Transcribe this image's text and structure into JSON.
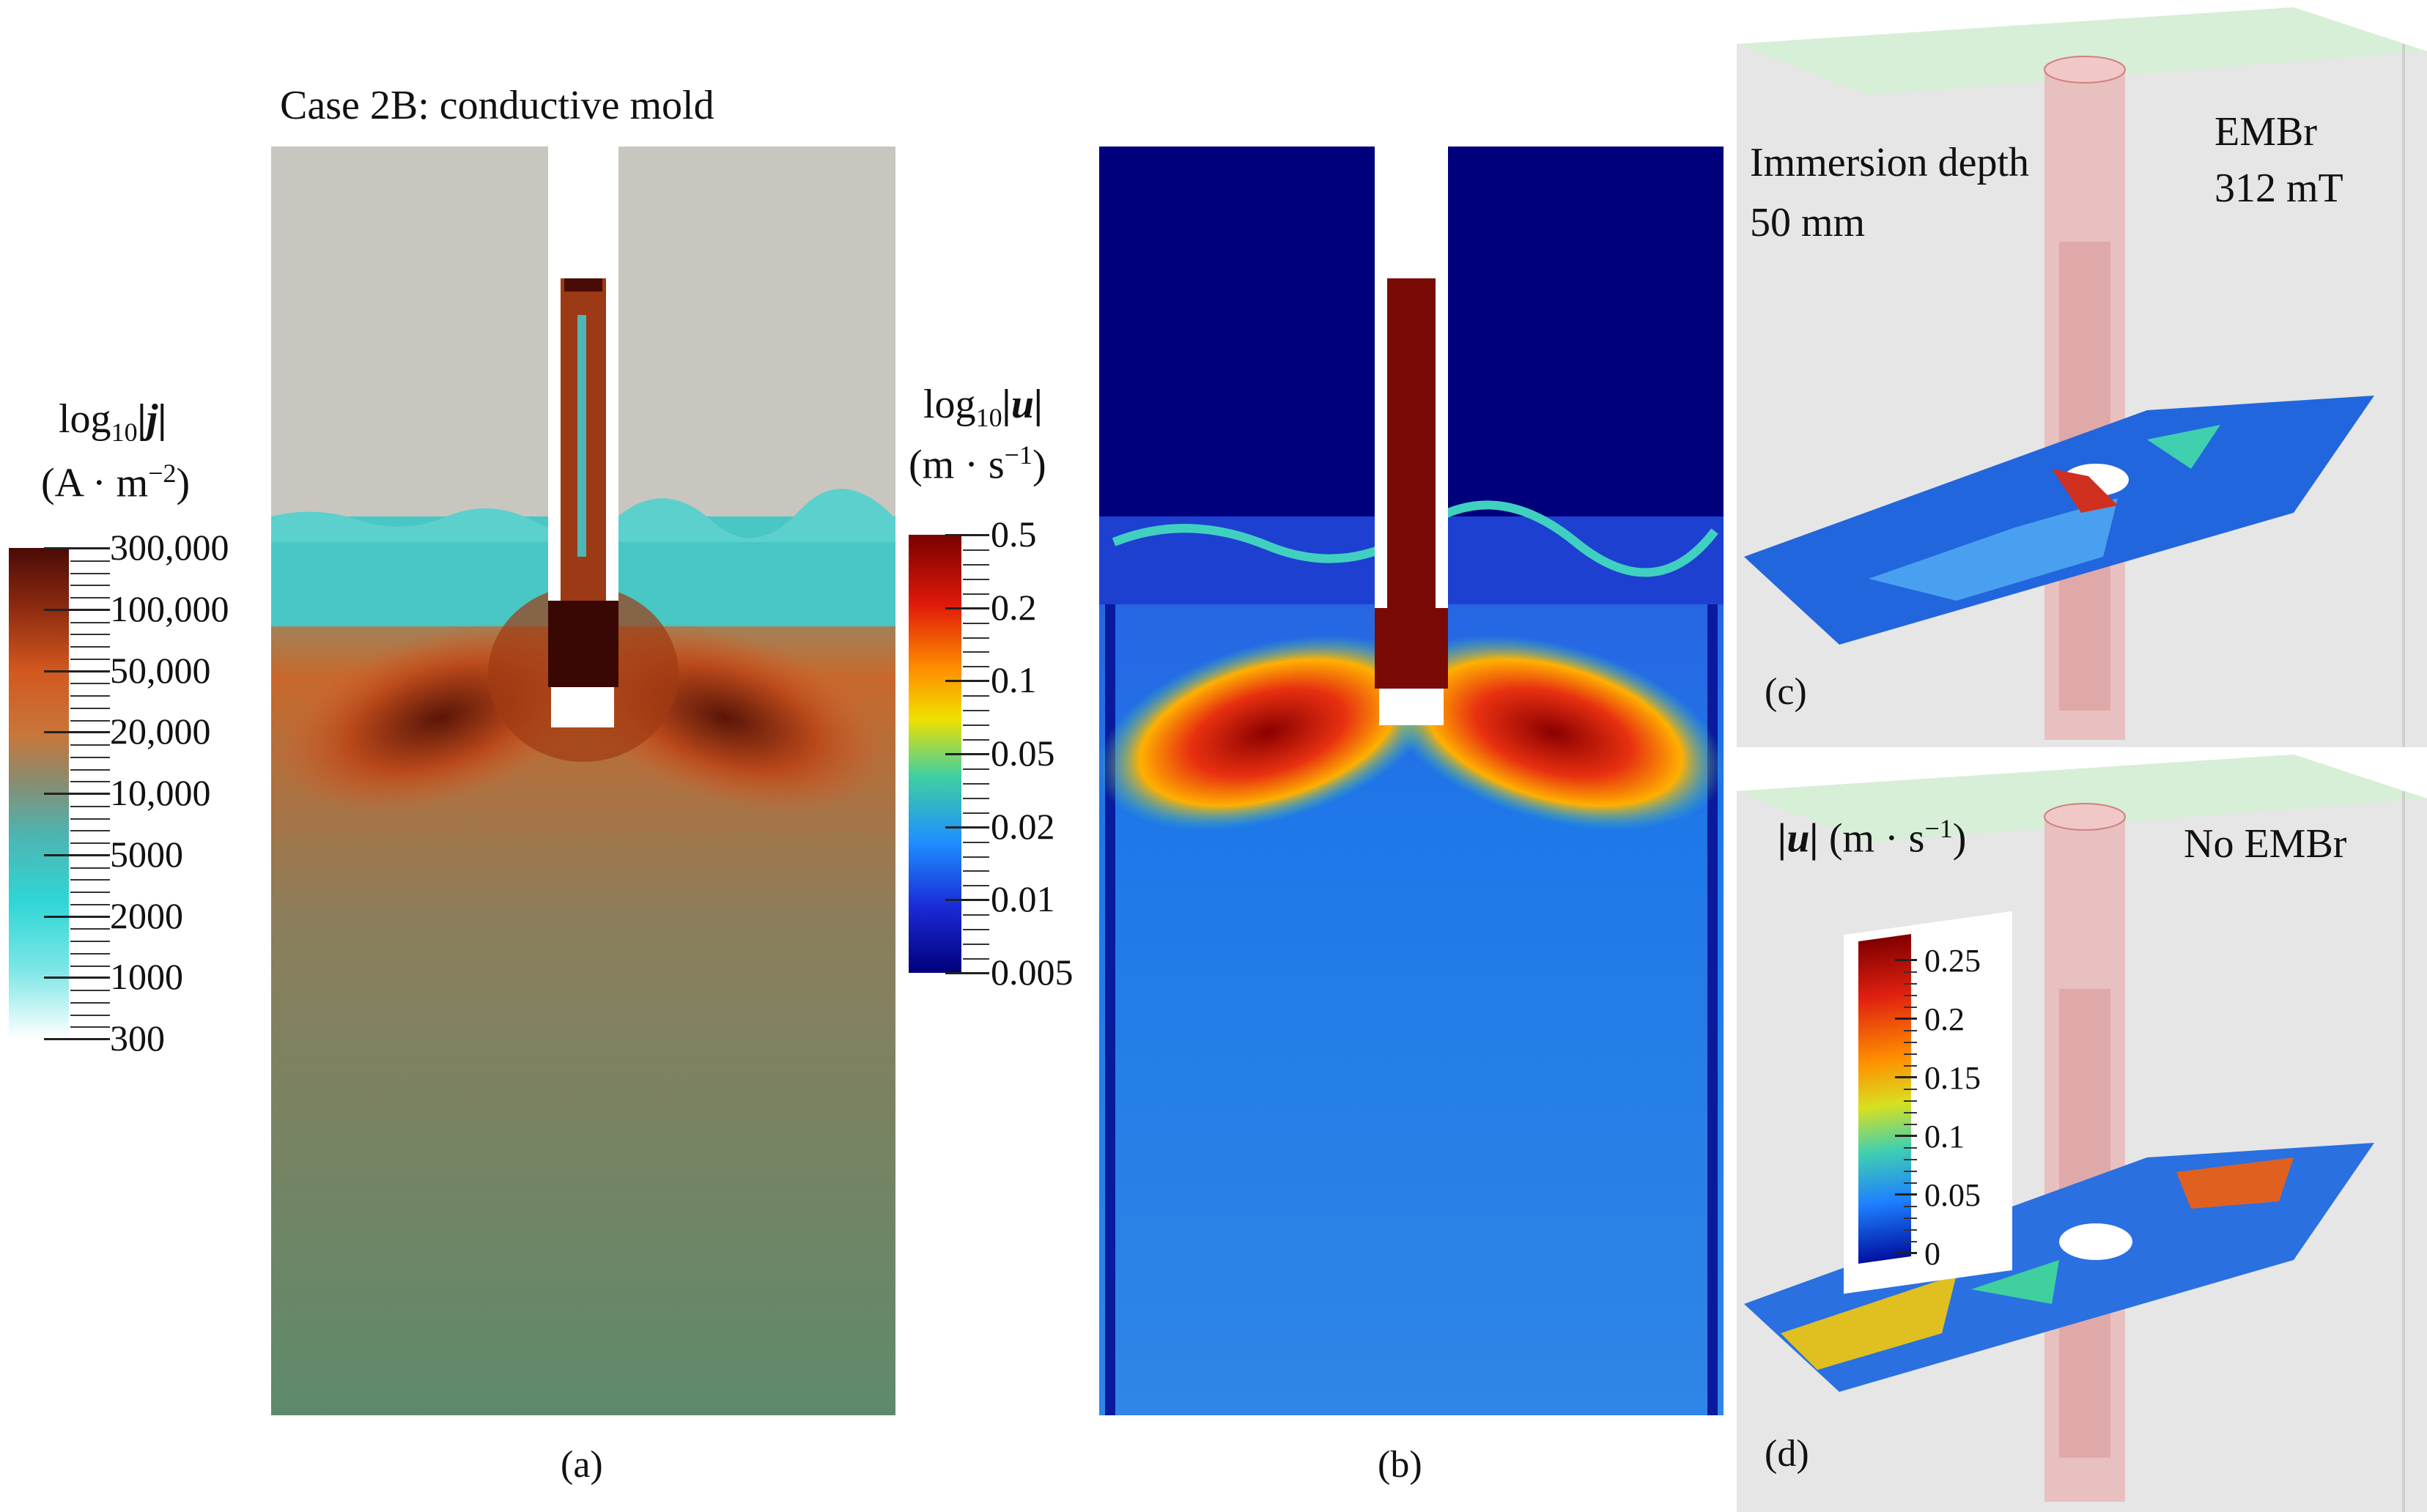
{
  "panel_a": {
    "title": "Case 2B: conductive mold",
    "label": "(a)",
    "colorbar": {
      "title_line1": "log",
      "title_sub": "10",
      "title_var": "|j|",
      "unit": "(A · m",
      "unit_exp": "−2",
      "unit_close": ")",
      "ticks": [
        "300,000",
        "100,000",
        "50,000",
        "20,000",
        "10,000",
        "5000",
        "2000",
        "1000",
        "300"
      ],
      "colors": [
        "#4a0b06",
        "#8c2a10",
        "#d2581f",
        "#c8763a",
        "#8c8a6c",
        "#4fb3b0",
        "#2fd6d6",
        "#7de6e6",
        "#ffffff"
      ]
    }
  },
  "panel_b": {
    "label": "(b)",
    "colorbar": {
      "title_line1": "log",
      "title_sub": "10",
      "title_var": "|u|",
      "unit": "(m · s",
      "unit_exp": "−1",
      "unit_close": ")",
      "ticks": [
        "0.5",
        "0.2",
        "0.1",
        "0.05",
        "0.02",
        "0.01",
        "0.005"
      ],
      "colors": [
        "#7a0000",
        "#e01a0a",
        "#ff8a00",
        "#f0e000",
        "#40d0a0",
        "#1e90ff",
        "#1a2ad8",
        "#00007a"
      ]
    }
  },
  "panel_c": {
    "label": "(c)",
    "text_left_line1": "Immersion depth",
    "text_left_line2": "50 mm",
    "text_right_line1": "EMBr",
    "text_right_line2": "312 mT"
  },
  "panel_d": {
    "label": "(d)",
    "text_right": "No EMBr",
    "colorbar": {
      "title_var": "|u|",
      "unit": "(m · s",
      "unit_exp": "−1",
      "unit_close": ")",
      "ticks": [
        "0.25",
        "0.2",
        "0.15",
        "0.1",
        "0.05",
        "0"
      ]
    }
  }
}
